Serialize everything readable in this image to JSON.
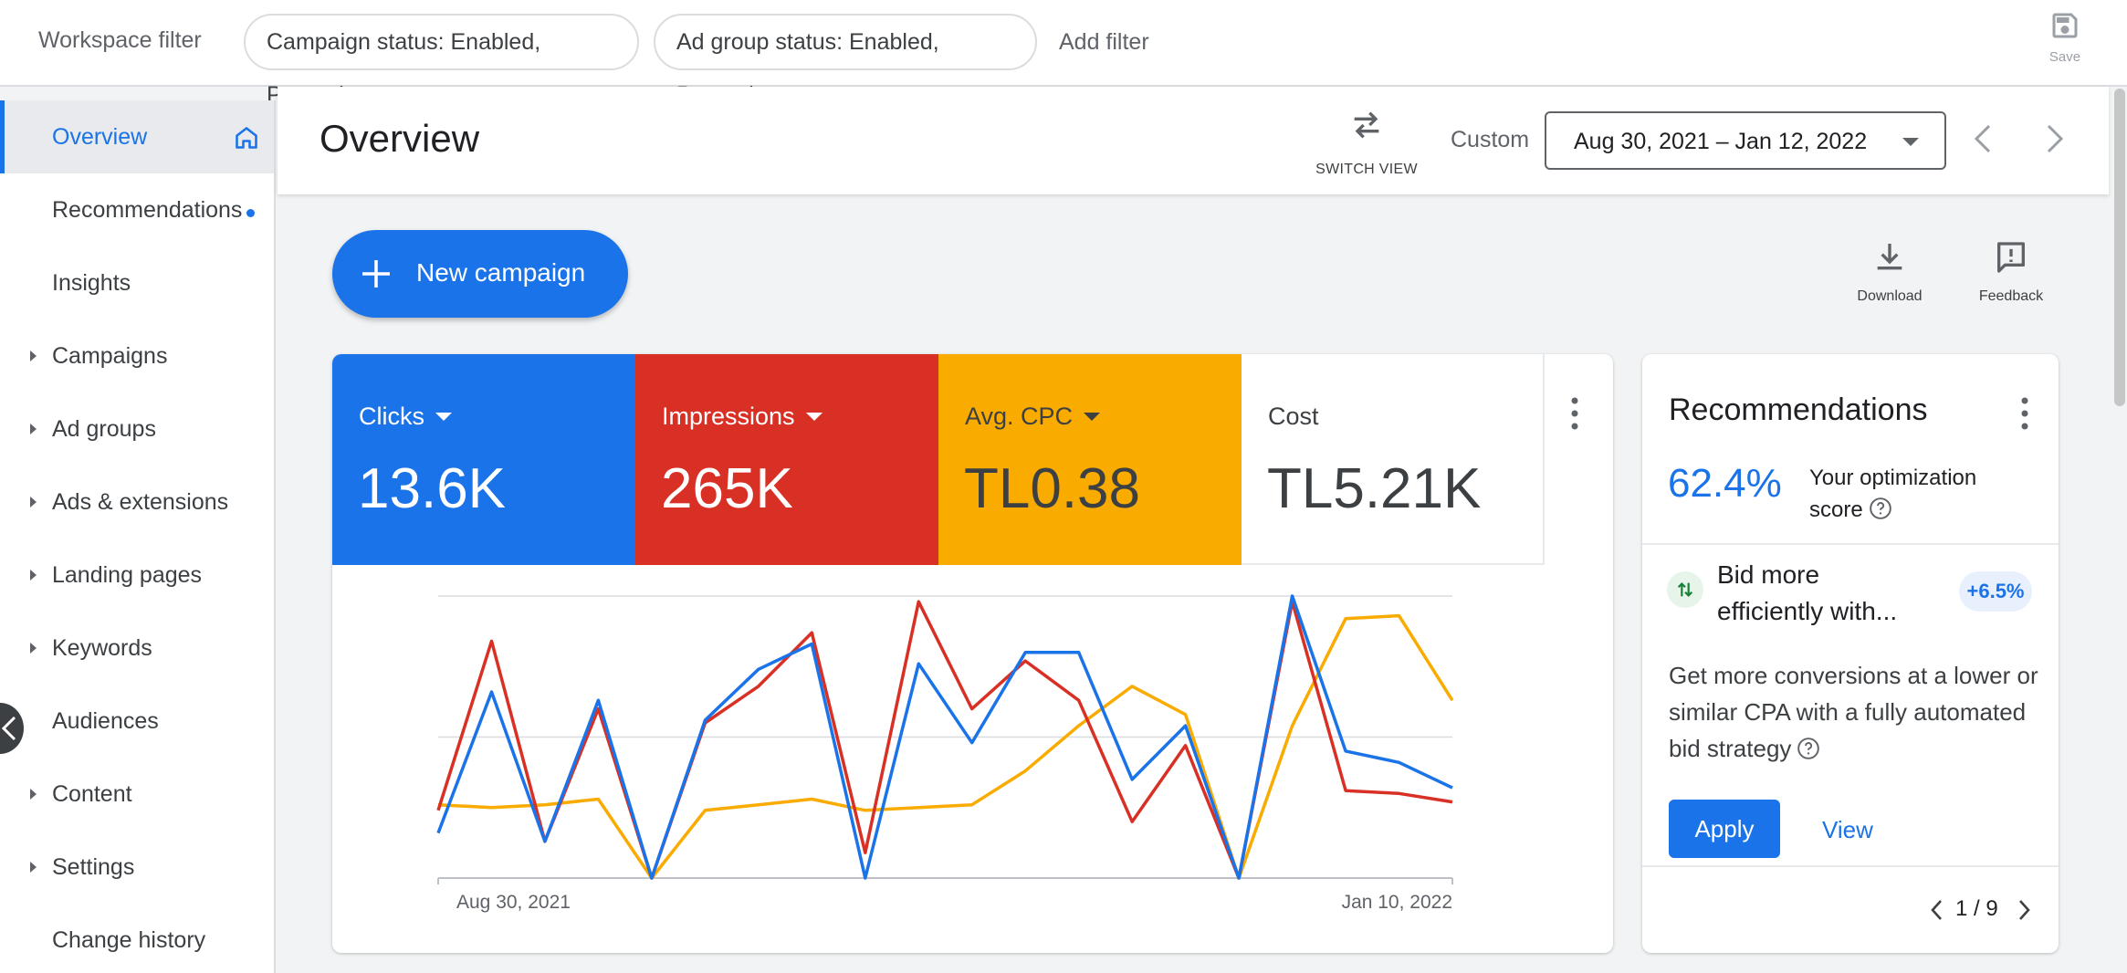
{
  "filterbar": {
    "workspace_label": "Workspace filter",
    "chips": [
      "Campaign status: Enabled, Paused",
      "Ad group status: Enabled, Paused"
    ],
    "add_filter": "Add filter",
    "save_label": "Save"
  },
  "sidebar": {
    "items": [
      {
        "label": "Overview",
        "active": true,
        "expandable": false
      },
      {
        "label": "Recommendations",
        "active": false,
        "expandable": false
      },
      {
        "label": "Insights",
        "active": false,
        "expandable": false
      },
      {
        "label": "Campaigns",
        "active": false,
        "expandable": true
      },
      {
        "label": "Ad groups",
        "active": false,
        "expandable": true
      },
      {
        "label": "Ads & extensions",
        "active": false,
        "expandable": true
      },
      {
        "label": "Landing pages",
        "active": false,
        "expandable": true
      },
      {
        "label": "Keywords",
        "active": false,
        "expandable": true
      },
      {
        "label": "Audiences",
        "active": false,
        "expandable": false
      },
      {
        "label": "Content",
        "active": false,
        "expandable": true
      },
      {
        "label": "Settings",
        "active": false,
        "expandable": true
      },
      {
        "label": "Change history",
        "active": false,
        "expandable": false
      }
    ]
  },
  "header": {
    "title": "Overview",
    "switch_view": "SWITCH VIEW",
    "range_type": "Custom",
    "date_range": "Aug 30, 2021 – Jan 12, 2022"
  },
  "actions": {
    "new_campaign": "New campaign",
    "download": "Download",
    "feedback": "Feedback"
  },
  "metrics": [
    {
      "name": "Clicks",
      "value": "13.6K",
      "color": "#1a73e8"
    },
    {
      "name": "Impressions",
      "value": "265K",
      "color": "#d93025"
    },
    {
      "name": "Avg. CPC",
      "value": "TL0.38",
      "color": "#f9ab00"
    },
    {
      "name": "Cost",
      "value": "TL5.21K",
      "color": "#ffffff"
    }
  ],
  "chart_data": {
    "type": "line",
    "x_labels": [
      "Aug 30, 2021",
      "Jan 10, 2022"
    ],
    "grid": true,
    "yaxis": "none",
    "series": [
      {
        "name": "Clicks",
        "color": "#1a73e8",
        "values": [
          16,
          66,
          13,
          63,
          0,
          56,
          74,
          83,
          0,
          76,
          48,
          80,
          80,
          35,
          54,
          0,
          100,
          45,
          41,
          32
        ]
      },
      {
        "name": "Impressions",
        "color": "#d93025",
        "values": [
          24,
          84,
          13,
          60,
          0,
          55,
          68,
          87,
          9,
          98,
          60,
          77,
          63,
          20,
          47,
          0,
          98,
          31,
          30,
          27
        ]
      },
      {
        "name": "Avg. CPC",
        "color": "#f9ab00",
        "values": [
          26,
          25,
          26,
          28,
          0,
          24,
          26,
          28,
          24,
          25,
          26,
          38,
          54,
          68,
          58,
          0,
          54,
          92,
          93,
          63
        ]
      }
    ]
  },
  "recommendations": {
    "title": "Recommendations",
    "score": "62.4%",
    "score_label": "Your optimization score",
    "item_title": "Bid more efficiently with...",
    "item_badge": "+6.5%",
    "item_desc": "Get more conversions at a lower or similar CPA with a fully automated bid strategy",
    "apply": "Apply",
    "view": "View",
    "pager": "1 / 9"
  }
}
